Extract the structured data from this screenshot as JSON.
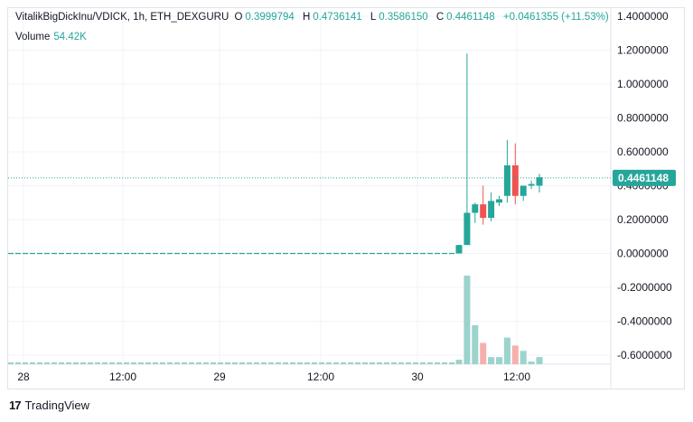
{
  "legend": {
    "symbol": "VitalikBigDickInu/VDICK, 1h, ETH_DEXGURU",
    "open_label": "O",
    "open": "0.3999794",
    "high_label": "H",
    "high": "0.4736141",
    "low_label": "L",
    "low": "0.3586150",
    "close_label": "C",
    "close": "0.4461148",
    "change": "+0.0461355 (+11.53%)",
    "volume_label": "Volume",
    "volume": "54.42K"
  },
  "footer": {
    "brand": "TradingView",
    "logo_text": "17"
  },
  "colors": {
    "up": "#26a69a",
    "down": "#ef5350",
    "up_vol": "#9bd3cd",
    "down_vol": "#f5b0ae",
    "price_tag": "#26a69a",
    "grid": "#f0f3fa"
  },
  "chart_data": {
    "type": "candlestick",
    "y_axis_ticks": [
      "1.4000000",
      "1.2000000",
      "1.0000000",
      "0.8000000",
      "0.6000000",
      "0.4000000",
      "0.2000000",
      "0.0000000",
      "-0.2000000",
      "-0.4000000",
      "-0.6000000"
    ],
    "y_tick_values": [
      1.4,
      1.2,
      1.0,
      0.8,
      0.6,
      0.4,
      0.2,
      0.0,
      -0.2,
      -0.4,
      -0.6
    ],
    "ylim": [
      -0.6,
      1.4
    ],
    "x_axis_ticks": [
      "28",
      "12:00",
      "29",
      "12:00",
      "30",
      "12:00"
    ],
    "last_price_label": "0.4461148",
    "last_price": 0.4461148,
    "flat_level": 0.0,
    "candles": [
      {
        "o": 0.0,
        "h": 0.05,
        "l": 0.0,
        "c": 0.05
      },
      {
        "o": 0.05,
        "h": 1.18,
        "l": 0.05,
        "c": 0.24
      },
      {
        "o": 0.24,
        "h": 0.3,
        "l": 0.18,
        "c": 0.29
      },
      {
        "o": 0.29,
        "h": 0.4,
        "l": 0.17,
        "c": 0.21
      },
      {
        "o": 0.21,
        "h": 0.36,
        "l": 0.19,
        "c": 0.31
      },
      {
        "o": 0.3,
        "h": 0.34,
        "l": 0.28,
        "c": 0.32
      },
      {
        "o": 0.34,
        "h": 0.67,
        "l": 0.3,
        "c": 0.52
      },
      {
        "o": 0.52,
        "h": 0.65,
        "l": 0.29,
        "c": 0.34
      },
      {
        "o": 0.34,
        "h": 0.4,
        "l": 0.31,
        "c": 0.4
      },
      {
        "o": 0.4,
        "h": 0.43,
        "l": 0.38,
        "c": 0.41
      },
      {
        "o": 0.4,
        "h": 0.47,
        "l": 0.36,
        "c": 0.45
      }
    ],
    "volumes": [
      {
        "v": 0.05,
        "up": true
      },
      {
        "v": 1.0,
        "up": true
      },
      {
        "v": 0.44,
        "up": true
      },
      {
        "v": 0.24,
        "up": false
      },
      {
        "v": 0.08,
        "up": true
      },
      {
        "v": 0.08,
        "up": true
      },
      {
        "v": 0.3,
        "up": true
      },
      {
        "v": 0.21,
        "up": false
      },
      {
        "v": 0.15,
        "up": true
      },
      {
        "v": 0.03,
        "up": true
      },
      {
        "v": 0.08,
        "up": true
      }
    ]
  }
}
